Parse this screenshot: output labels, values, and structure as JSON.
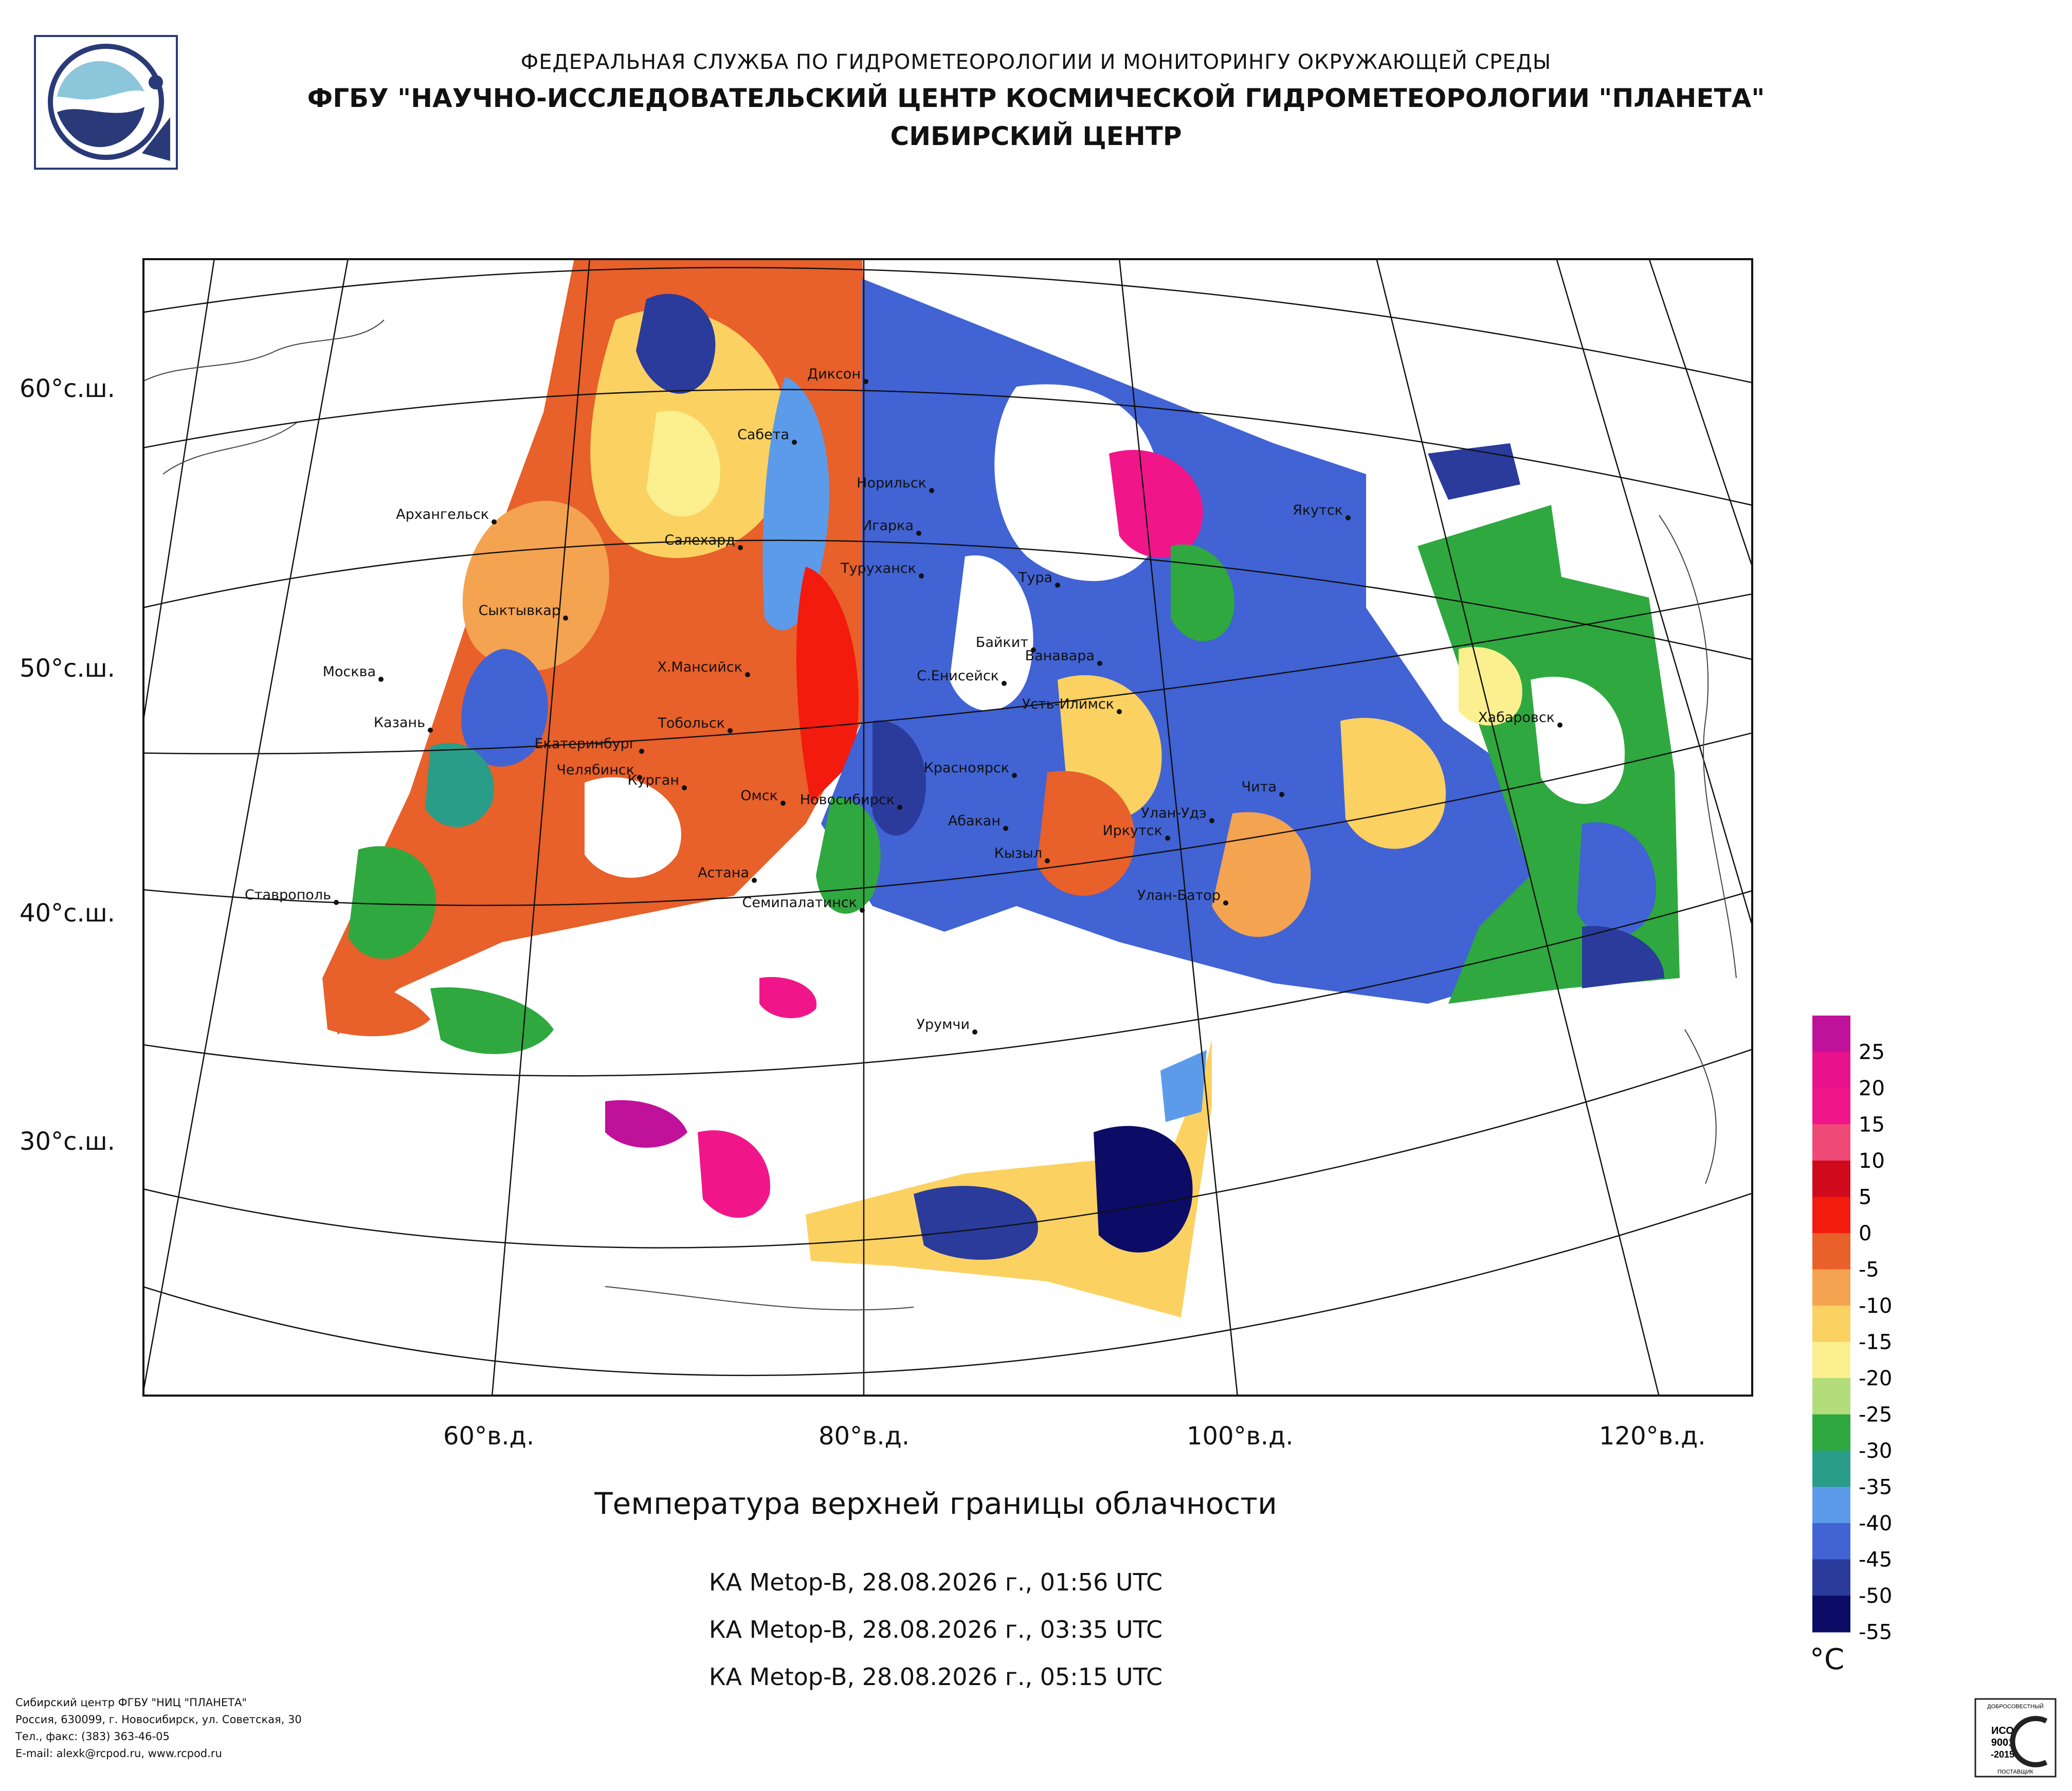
{
  "header": {
    "line1": "ФЕДЕРАЛЬНАЯ СЛУЖБА ПО ГИДРОМЕТЕОРОЛОГИИ И МОНИТОРИНГУ ОКРУЖАЮЩЕЙ СРЕДЫ",
    "line2": "ФГБУ \"НАУЧНО-ИССЛЕДОВАТЕЛЬСКИЙ ЦЕНТР КОСМИЧЕСКОЙ ГИДРОМЕТЕОРОЛОГИИ \"ПЛАНЕТА\"",
    "line3": "СИБИРСКИЙ ЦЕНТР"
  },
  "map": {
    "lat_labels": [
      "60°с.ш.",
      "50°с.ш.",
      "40°с.ш.",
      "30°с.ш."
    ],
    "lon_labels": [
      "60°в.д.",
      "80°в.д.",
      "100°в.д.",
      "120°в.д."
    ],
    "cities": [
      "Диксон",
      "Сабета",
      "Норильск",
      "Игарка",
      "Туруханск",
      "Архангельск",
      "Салехард",
      "Тура",
      "Якутск",
      "Сыктывкар",
      "Байкит",
      "Ванавара",
      "Москва",
      "Х.Мансийск",
      "С.Енисейск",
      "Усть-Илимск",
      "Казань",
      "Тобольск",
      "Екатеринбург",
      "Хабаровск",
      "Челябинск",
      "Курган",
      "Красноярск",
      "Омск",
      "Чита",
      "Новосибирск",
      "Абакан",
      "Улан-Удэ",
      "Иркутск",
      "Кызыл",
      "Астана",
      "Ставрополь",
      "Семипалатинск",
      "Улан-Батор",
      "Урумчи"
    ]
  },
  "caption": {
    "title": "Температура верхней границы облачности",
    "passes": [
      "КА Metop-B, 28.08.2026 г., 01:56 UTC",
      "КА Metop-B, 28.08.2026 г., 03:35 UTC",
      "КА Metop-B, 28.08.2026 г., 05:15 UTC"
    ]
  },
  "legend": {
    "unit": "°C",
    "labels": [
      "25",
      "20",
      "15",
      "10",
      "5",
      "0",
      "-5",
      "-10",
      "-15",
      "-20",
      "-25",
      "-30",
      "-35",
      "-40",
      "-45",
      "-50",
      "-55"
    ],
    "colors": [
      "#c0119a",
      "#e8138c",
      "#f0168a",
      "#ef4a75",
      "#cf0a1c",
      "#f31a0e",
      "#e8602a",
      "#f4a350",
      "#fbd161",
      "#fbef8f",
      "#b3dd7a",
      "#2fa83f",
      "#2a9d88",
      "#5c9bea",
      "#4163d4",
      "#2a3b9c",
      "#0c0c66"
    ]
  },
  "footer": {
    "lines": [
      "Сибирский центр ФГБУ \"НИЦ \"ПЛАНЕТА\"",
      "Россия, 630099, г. Новосибирск, ул. Советская, 30",
      "Тел., факс: (383) 363-46-05",
      "E-mail: alexk@rcpod.ru, www.rcpod.ru"
    ]
  },
  "iso_badge": {
    "top": "ДОБРОСОВЕСТНЫЙ",
    "mid1": "ИСО",
    "mid2": "9001",
    "mid3": "-2015",
    "bottom": "ПОСТАВЩИК"
  }
}
